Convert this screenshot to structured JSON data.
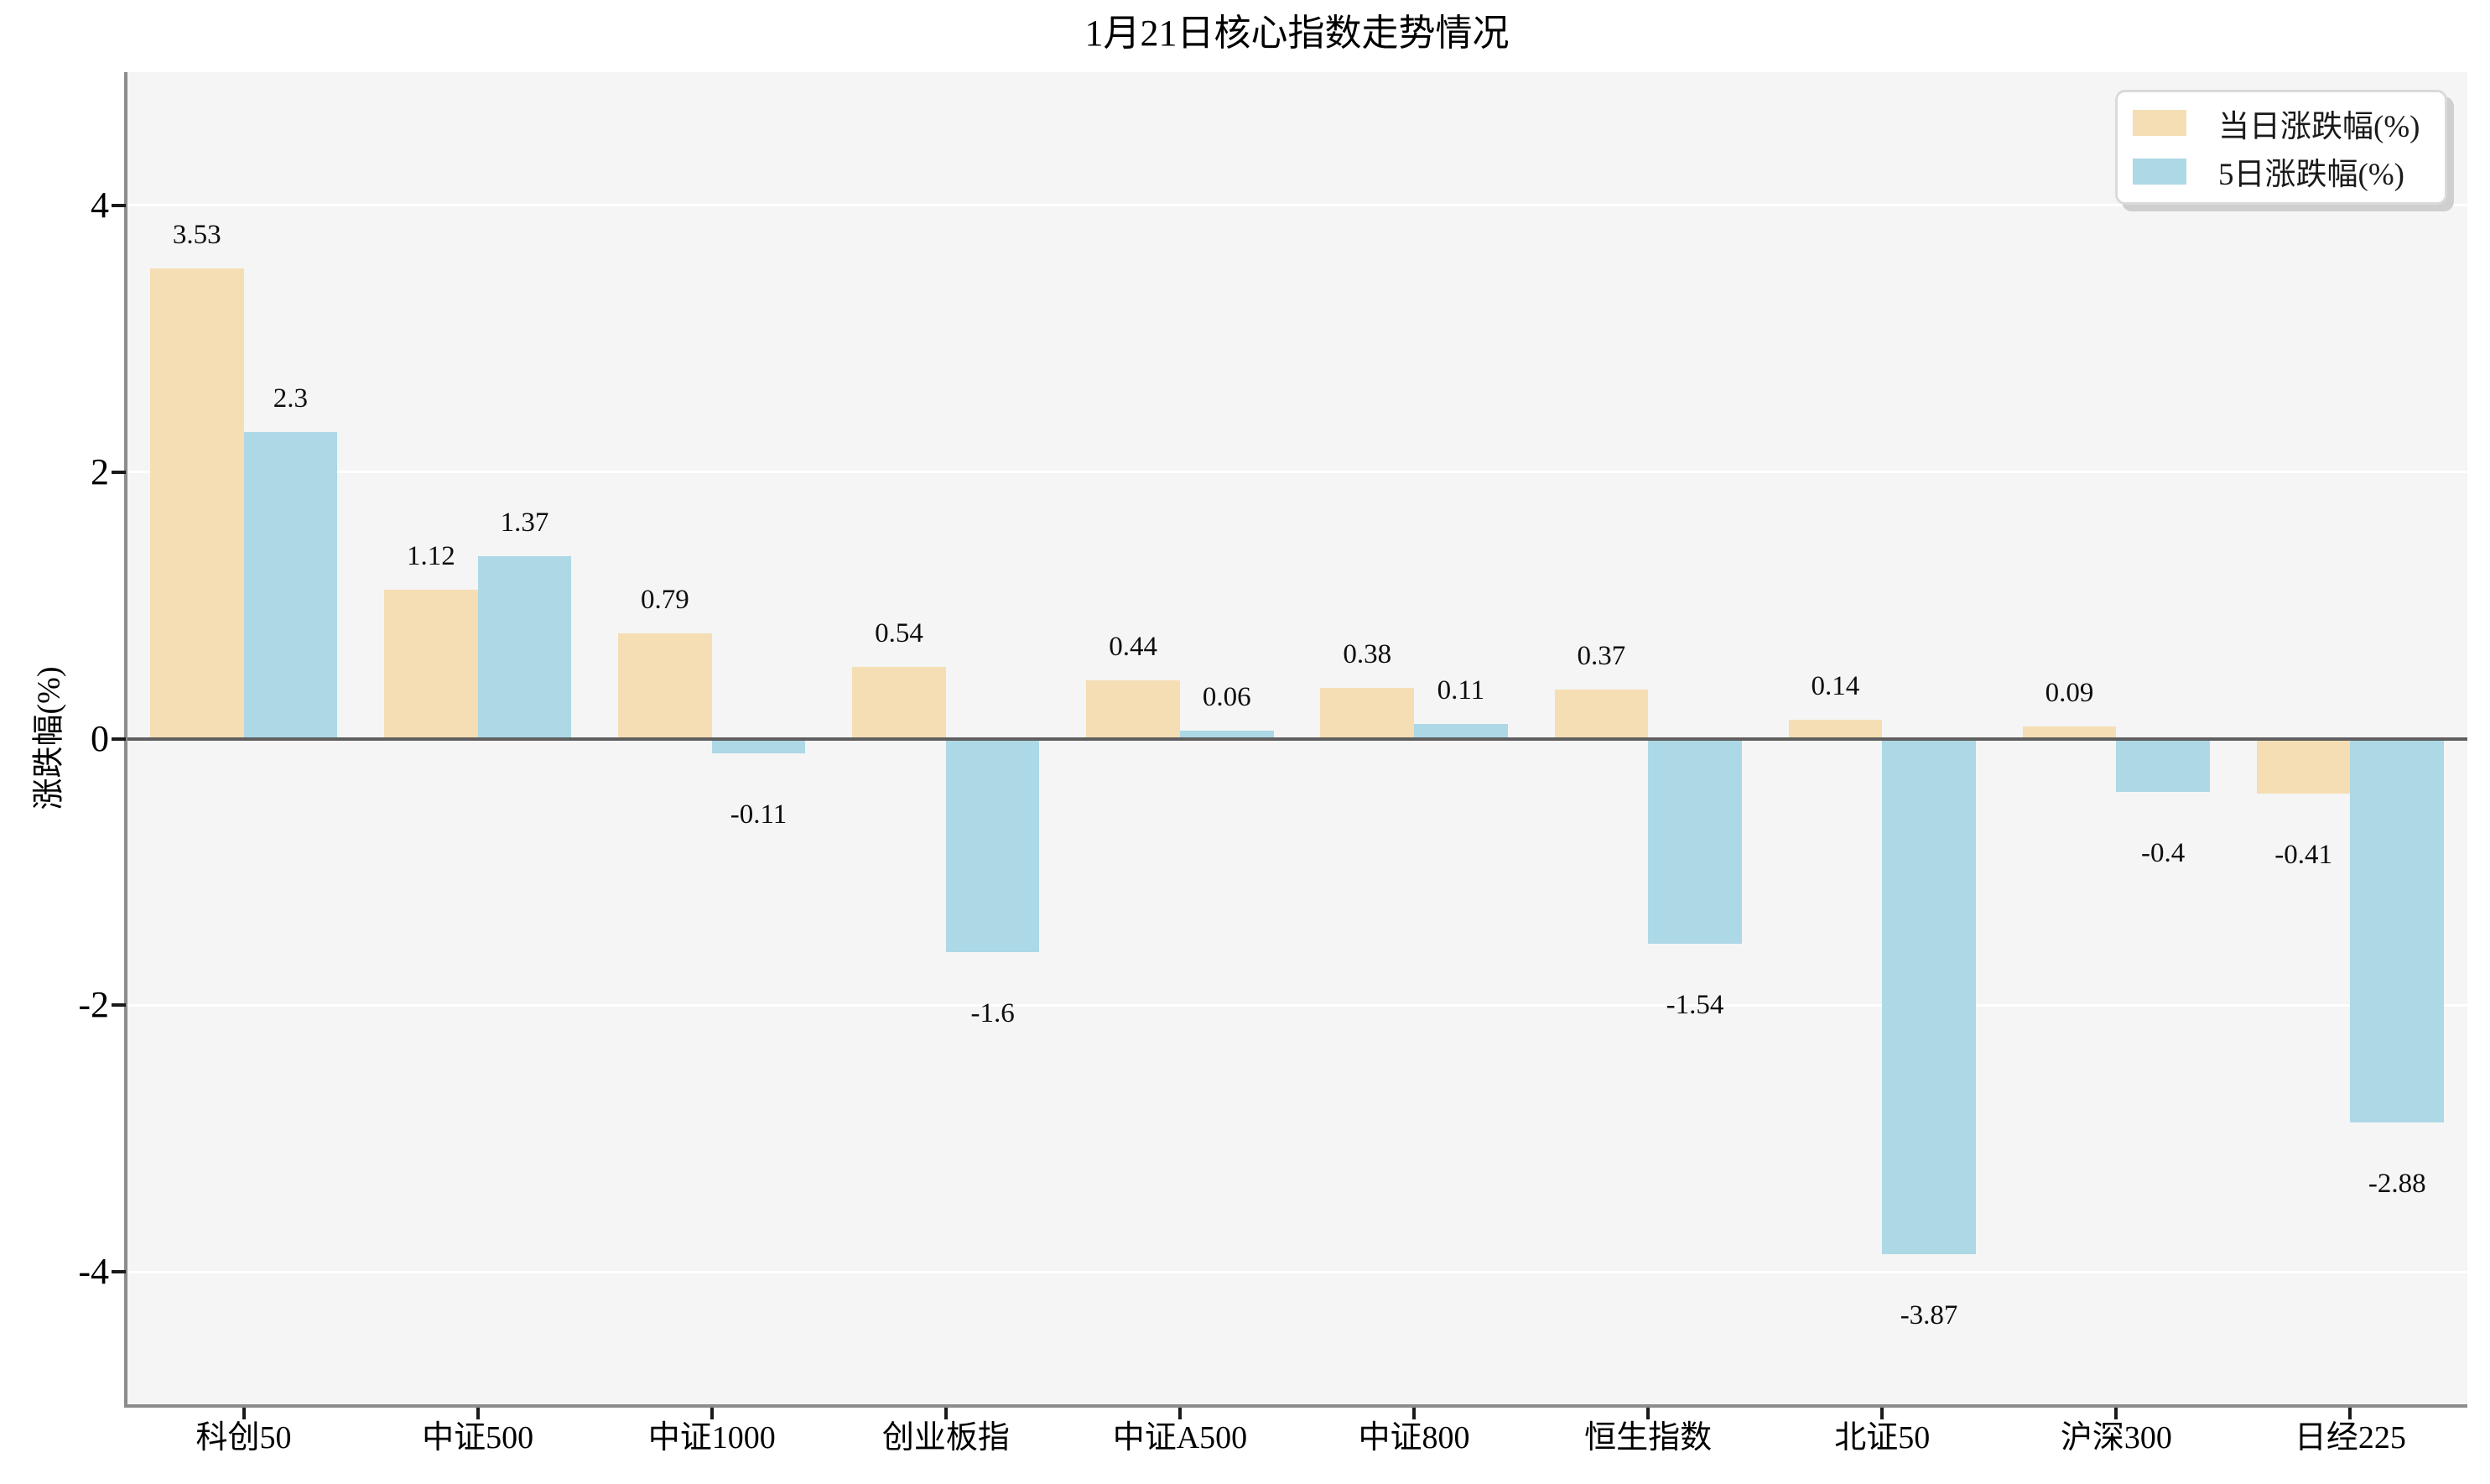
{
  "title": "1月21日核心指数走势情况",
  "colors": {
    "daily_series": "#F5DEB3",
    "five_day_series": "#ADD8E6",
    "plot_background": "#F5F5F5",
    "gridline": "#FFFFFF",
    "zero_line": "#5F5F5F",
    "spine": "#8C8C8C",
    "tick": "#1A1A1A"
  },
  "chart_data": {
    "type": "bar",
    "title": "1月21日核心指数走势情况",
    "xlabel": "",
    "ylabel": "涨跌幅(%)",
    "ylim": [
      -5,
      5
    ],
    "yticks": [
      -4,
      -2,
      0,
      2,
      4
    ],
    "grid": true,
    "legend_position": "upper right",
    "categories": [
      "科创50",
      "中证500",
      "中证1000",
      "创业板指",
      "中证A500",
      "中证800",
      "恒生指数",
      "北证50",
      "沪深300",
      "日经225"
    ],
    "series": [
      {
        "name": "当日涨跌幅(%)",
        "color": "#F5DEB3",
        "values": [
          3.53,
          1.12,
          0.79,
          0.54,
          0.44,
          0.38,
          0.37,
          0.14,
          0.09,
          -0.41
        ]
      },
      {
        "name": "5日涨跌幅(%)",
        "color": "#ADD8E6",
        "values": [
          2.3,
          1.37,
          -0.11,
          -1.6,
          0.06,
          0.11,
          -1.54,
          -3.87,
          -0.4,
          -2.88
        ]
      }
    ]
  }
}
